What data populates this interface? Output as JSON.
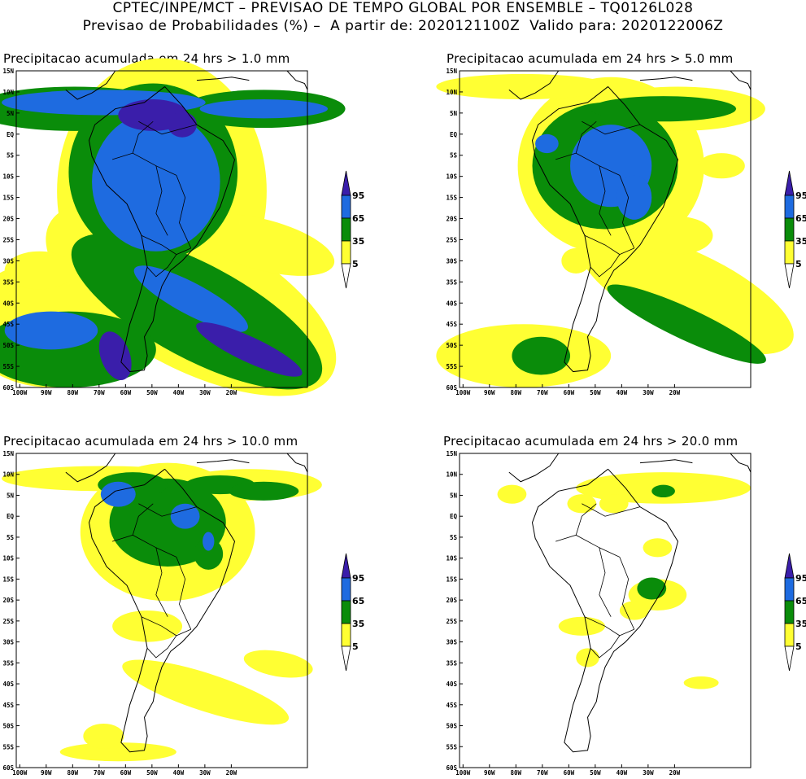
{
  "header": {
    "line1": "CPTEC/INPE/MCT – PREVISAO DE TEMPO GLOBAL POR ENSEMBLE – TQ0126L028",
    "line2": "Previsao de Probabilidades (%) –  A partir de: 2020121100Z  Valido para: 2020122006Z"
  },
  "colors": {
    "light": "#ffff33",
    "mid": "#0a8c0a",
    "high": "#1e6be0",
    "top": "#3a1eaa",
    "coast": "#000000"
  },
  "axes": {
    "lat_labels": [
      "15N",
      "10N",
      "5N",
      "EQ",
      "5S",
      "10S",
      "15S",
      "20S",
      "25S",
      "30S",
      "35S",
      "40S",
      "45S",
      "50S",
      "55S",
      "60S"
    ],
    "lon_labels": [
      "100W",
      "90W",
      "80W",
      "70W",
      "60W",
      "50W",
      "40W",
      "30W",
      "20W"
    ]
  },
  "legend": {
    "levels": [
      "95",
      "65",
      "35",
      "5"
    ]
  },
  "panels": [
    {
      "title": "Precipitacao acumulada em 24 hrs > 1.0 mm"
    },
    {
      "title": "Precipitacao acumulada em 24 hrs > 5.0 mm"
    },
    {
      "title": "Precipitacao acumulada em 24 hrs > 10.0 mm"
    },
    {
      "title": "Precipitacao acumulada em 24 hrs > 20.0 mm"
    }
  ]
}
